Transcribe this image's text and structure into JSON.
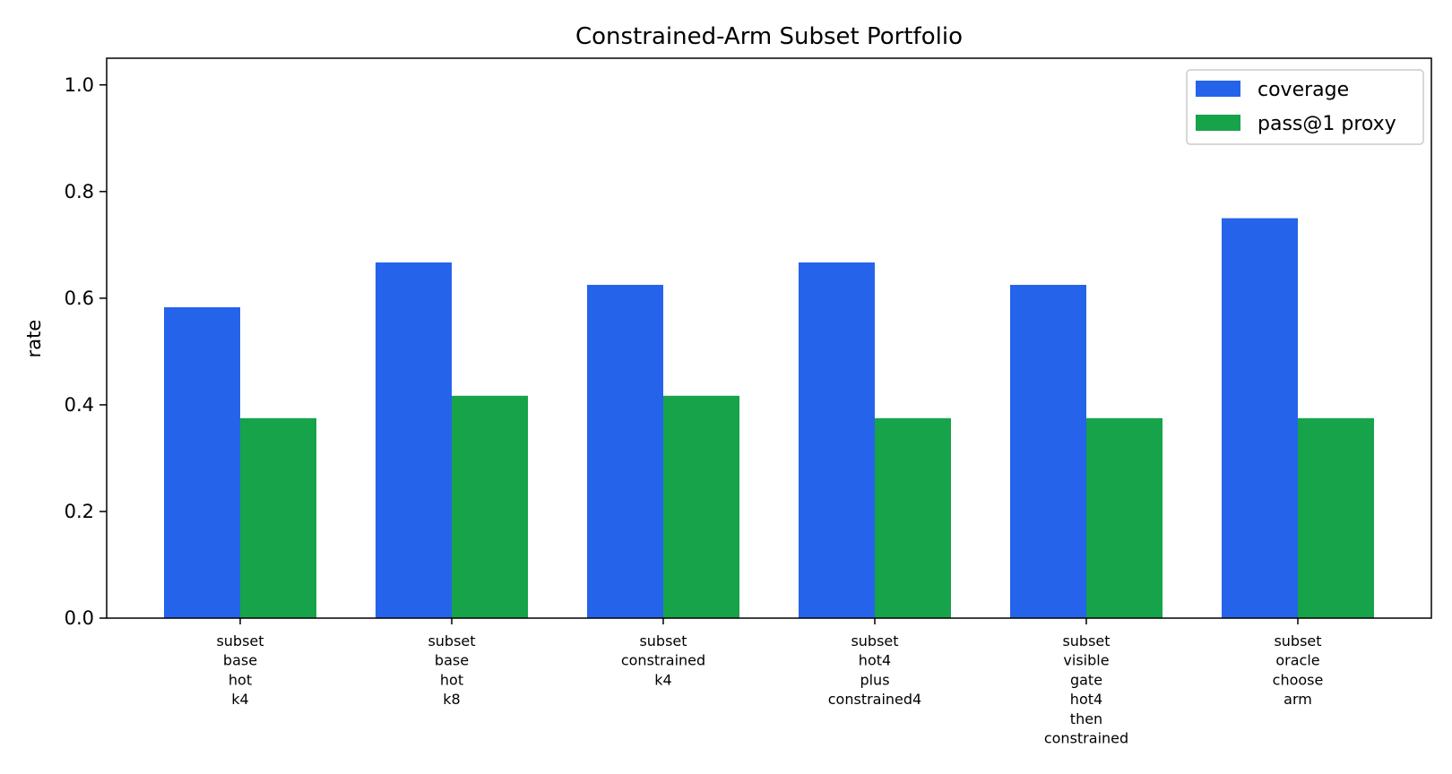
{
  "chart_data": {
    "type": "bar",
    "title": "Constrained-Arm Subset Portfolio",
    "xlabel": "",
    "ylabel": "rate",
    "ylim": [
      0,
      1.05
    ],
    "yticks": [
      "0.0",
      "0.2",
      "0.4",
      "0.6",
      "0.8",
      "1.0"
    ],
    "categories": [
      [
        "subset",
        "base",
        "hot",
        "k4"
      ],
      [
        "subset",
        "base",
        "hot",
        "k8"
      ],
      [
        "subset",
        "constrained",
        "k4"
      ],
      [
        "subset",
        "hot4",
        "plus",
        "constrained4"
      ],
      [
        "subset",
        "visible",
        "gate",
        "hot4",
        "then",
        "constrained"
      ],
      [
        "subset",
        "oracle",
        "choose",
        "arm"
      ]
    ],
    "series": [
      {
        "name": "coverage",
        "color": "#2563eb",
        "values": [
          0.583,
          0.667,
          0.625,
          0.667,
          0.625,
          0.75
        ]
      },
      {
        "name": "pass@1 proxy",
        "color": "#16a34a",
        "values": [
          0.375,
          0.417,
          0.417,
          0.375,
          0.375,
          0.375
        ]
      }
    ],
    "legend": "top-right",
    "grid": false
  }
}
